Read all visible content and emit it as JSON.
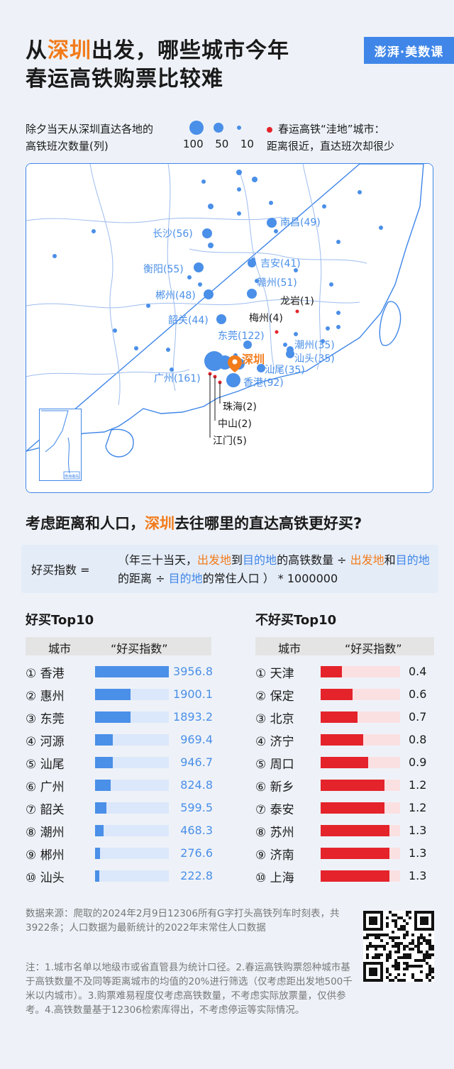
{
  "title_line1": [
    "从",
    "深圳",
    "出发，哪些城市今年"
  ],
  "title_line2": "春运高铁购票比较难",
  "brand": "澎湃·美数课",
  "legend": {
    "size_line1": "除夕当天从深圳直达各地的",
    "size_line2": "高铁班次数量(列)",
    "size_values": [
      "100",
      "50",
      "10"
    ],
    "red_line1": "春运高铁“洼地”城市：",
    "red_line2": "距离很近，直达班次却很少"
  },
  "map": {
    "origin": "深圳",
    "blue_cities": [
      {
        "label": "南昌(49)",
        "trains": 49
      },
      {
        "label": "长沙(56)",
        "trains": 56
      },
      {
        "label": "吉安(41)",
        "trains": 41
      },
      {
        "label": "衡阳(55)",
        "trains": 55
      },
      {
        "label": "赣州(51)",
        "trains": 51
      },
      {
        "label": "郴州(48)",
        "trains": 48
      },
      {
        "label": "韶关(44)",
        "trains": 44
      },
      {
        "label": "东莞(122)",
        "trains": 122
      },
      {
        "label": "潮州(35)",
        "trains": 35
      },
      {
        "label": "汕头(35)",
        "trains": 35
      },
      {
        "label": "汕尾(35)",
        "trains": 35
      },
      {
        "label": "广州(161)",
        "trains": 161
      },
      {
        "label": "香港(92)",
        "trains": 92
      }
    ],
    "red_cities": [
      {
        "label": "龙岩(1)",
        "trains": 1
      },
      {
        "label": "梅州(4)",
        "trains": 4
      },
      {
        "label": "珠海(2)",
        "trains": 2
      },
      {
        "label": "中山(2)",
        "trains": 2
      },
      {
        "label": "江门(5)",
        "trains": 5
      }
    ],
    "inset_label": "南海诸岛"
  },
  "question": [
    "考虑距离和人口，",
    "深圳",
    "去往哪里的直达高铁更好买?"
  ],
  "formula": {
    "label": "好买指数 =",
    "parts": [
      {
        "t": "（年三十当天，",
        "c": ""
      },
      {
        "t": "出发地",
        "c": "orange"
      },
      {
        "t": "到",
        "c": ""
      },
      {
        "t": "目的地",
        "c": "blue"
      },
      {
        "t": "的高铁数量 ÷ ",
        "c": ""
      },
      {
        "t": "出发地",
        "c": "orange"
      },
      {
        "t": "和",
        "c": ""
      },
      {
        "t": "目的地",
        "c": "blue"
      },
      {
        "t": "的距离 ÷ ",
        "c": ""
      },
      {
        "t": "目的地",
        "c": "blue"
      },
      {
        "t": "的常住人口 ） * 1000000",
        "c": ""
      }
    ]
  },
  "chart_data": [
    {
      "type": "bar",
      "title": "好买Top10",
      "headers": [
        "城市",
        "“好买指数”"
      ],
      "ranks": [
        "①",
        "②",
        "③",
        "④",
        "⑤",
        "⑥",
        "⑦",
        "⑧",
        "⑨",
        "⑩"
      ],
      "categories": [
        "香港",
        "惠州",
        "东莞",
        "河源",
        "汕尾",
        "广州",
        "韶关",
        "潮州",
        "郴州",
        "汕头"
      ],
      "values": [
        3956.8,
        1900.1,
        1893.2,
        969.4,
        946.7,
        824.8,
        599.5,
        468.3,
        276.6,
        222.8
      ],
      "value_labels": [
        "3956.8",
        "1900.1",
        "1893.2",
        "969.4",
        "946.7",
        "824.8",
        "599.5",
        "468.3",
        "276.6",
        "222.8"
      ],
      "xlim": [
        0,
        3956.8
      ],
      "color": "#4a8fe8",
      "track_color": "#dbe7fa"
    },
    {
      "type": "bar",
      "title": "不好买Top10",
      "headers": [
        "城市",
        "“好买指数”"
      ],
      "ranks": [
        "①",
        "②",
        "③",
        "④",
        "⑤",
        "⑥",
        "⑦",
        "⑧",
        "⑨",
        "⑩"
      ],
      "categories": [
        "天津",
        "保定",
        "北京",
        "济宁",
        "周口",
        "新乡",
        "泰安",
        "苏州",
        "济南",
        "上海"
      ],
      "values": [
        0.4,
        0.6,
        0.7,
        0.8,
        0.9,
        1.2,
        1.2,
        1.3,
        1.3,
        1.3
      ],
      "value_labels": [
        "0.4",
        "0.6",
        "0.7",
        "0.8",
        "0.9",
        "1.2",
        "1.2",
        "1.3",
        "1.3",
        "1.3"
      ],
      "xlim": [
        0,
        1.5
      ],
      "color": "#e4232b",
      "track_color": "#fbe0e2"
    }
  ],
  "notes": {
    "source": "数据来源：爬取的2024年2月9日12306所有G字打头高铁列车时刻表，共3922条；人口数据为最新统计的2022年末常住人口数据",
    "note": "注：1.城市名单以地级市或省直管县为统计口径。2.春运高铁购票怨种城市基于高铁数量不及同等距离城市的均值的20%进行筛选（仅考虑距出发地500千米以内城市）。3.购票难易程度仅考虑高铁数量，不考虑实际放票量，仅供参考。4.高铁数量基于12306检索库得出，不考虑停运等实际情况。"
  }
}
